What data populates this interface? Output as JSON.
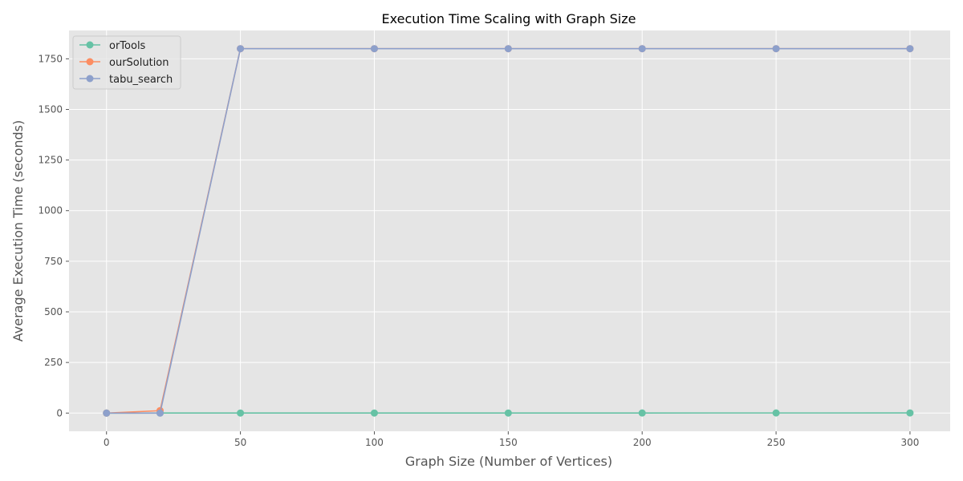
{
  "chart_data": {
    "type": "line",
    "title": "Execution Time Scaling with Graph Size",
    "xlabel": "Graph Size (Number of Vertices)",
    "ylabel": "Average Execution Time (seconds)",
    "x": [
      0,
      20,
      50,
      100,
      150,
      200,
      250,
      300
    ],
    "xlim": [
      -14,
      315
    ],
    "ylim": [
      -90,
      1890
    ],
    "xticks": [
      0,
      50,
      100,
      150,
      200,
      250,
      300
    ],
    "yticks": [
      0,
      250,
      500,
      750,
      1000,
      1250,
      1500,
      1750
    ],
    "grid": true,
    "legend_position": "top-left",
    "series": [
      {
        "name": "orTools",
        "color": "#66c2a5",
        "values": [
          0,
          0.5,
          0.3,
          0.2,
          0.3,
          0.5,
          0.6,
          0.7
        ]
      },
      {
        "name": "ourSolution",
        "color": "#fc8d62",
        "values": [
          0,
          12,
          1800,
          1800,
          1800,
          1800,
          1800,
          1800
        ]
      },
      {
        "name": "tabu_search",
        "color": "#8da0cb",
        "values": [
          0,
          0,
          1800,
          1800,
          1800,
          1800,
          1800,
          1800
        ]
      }
    ]
  }
}
